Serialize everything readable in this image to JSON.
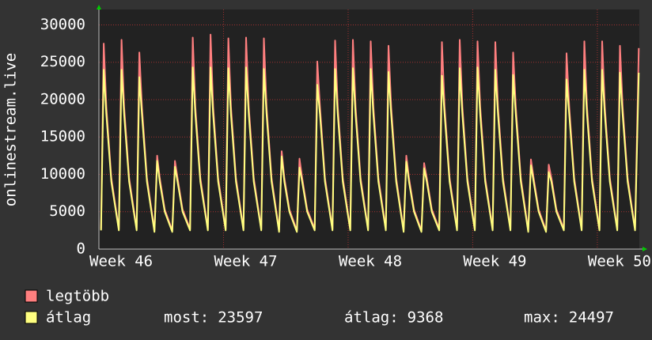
{
  "chart_data": {
    "type": "line",
    "ylabel": "onlinestream.live",
    "ylim": [
      0,
      31000
    ],
    "yticks": [
      0,
      5000,
      10000,
      15000,
      20000,
      25000,
      30000
    ],
    "xlim": [
      0,
      30.36
    ],
    "xticks": [
      {
        "value": 0,
        "label": "Week 46"
      },
      {
        "value": 7,
        "label": "Week 47"
      },
      {
        "value": 14,
        "label": "Week 48"
      },
      {
        "value": 21,
        "label": "Week 49"
      },
      {
        "value": 28,
        "label": "Week 50"
      }
    ],
    "grid": true,
    "x": [
      0.12,
      0.27,
      0.42,
      0.7,
      1.12,
      1.27,
      1.42,
      1.7,
      2.12,
      2.27,
      2.42,
      2.7,
      3.12,
      3.27,
      3.42,
      3.7,
      4.12,
      4.27,
      4.42,
      4.7,
      5.12,
      5.27,
      5.42,
      5.7,
      6.12,
      6.27,
      6.42,
      6.7,
      7.12,
      7.27,
      7.42,
      7.7,
      8.12,
      8.27,
      8.42,
      8.7,
      9.12,
      9.27,
      9.42,
      9.7,
      10.12,
      10.27,
      10.42,
      10.7,
      11.12,
      11.27,
      11.42,
      11.7,
      12.12,
      12.27,
      12.42,
      12.7,
      13.12,
      13.27,
      13.42,
      13.7,
      14.12,
      14.27,
      14.42,
      14.7,
      15.12,
      15.27,
      15.42,
      15.7,
      16.12,
      16.27,
      16.42,
      16.7,
      17.12,
      17.27,
      17.42,
      17.7,
      18.12,
      18.27,
      18.42,
      18.7,
      19.12,
      19.27,
      19.42,
      19.7,
      20.12,
      20.27,
      20.42,
      20.7,
      21.12,
      21.27,
      21.42,
      21.7,
      22.12,
      22.27,
      22.42,
      22.7,
      23.12,
      23.27,
      23.42,
      23.7,
      24.12,
      24.27,
      24.42,
      24.7,
      25.12,
      25.27,
      25.42,
      25.7,
      26.12,
      26.27,
      26.42,
      26.7,
      27.12,
      27.27,
      27.42,
      27.7,
      28.12,
      28.27,
      28.42,
      28.7,
      29.12,
      29.27,
      29.42,
      29.7,
      30.12,
      30.33
    ],
    "series": [
      {
        "name": "legtöbb",
        "color": "#ff7f7f",
        "values": [
          2700,
          27500,
          19000,
          9500,
          2700,
          28000,
          19000,
          9500,
          2700,
          26300,
          19000,
          9500,
          2500,
          12500,
          9500,
          5300,
          2500,
          11800,
          9500,
          5300,
          2700,
          28300,
          19000,
          9500,
          2700,
          28700,
          19000,
          9500,
          2700,
          28200,
          19000,
          9500,
          2700,
          28300,
          19000,
          9500,
          2700,
          28200,
          19000,
          9500,
          2500,
          13100,
          9500,
          5300,
          2500,
          12100,
          9500,
          5300,
          2700,
          25100,
          19000,
          9500,
          2700,
          27900,
          19000,
          9500,
          2700,
          28000,
          19000,
          9500,
          2700,
          27800,
          19000,
          9500,
          2700,
          27200,
          19000,
          9500,
          2500,
          12500,
          9500,
          5300,
          2500,
          11500,
          9500,
          5300,
          2700,
          27700,
          19000,
          9500,
          2700,
          28000,
          19000,
          9500,
          2700,
          27800,
          19000,
          9500,
          2700,
          27700,
          19000,
          9500,
          2700,
          26300,
          19000,
          9500,
          2500,
          12000,
          9500,
          5300,
          2500,
          11300,
          9500,
          5300,
          2700,
          26200,
          19000,
          9500,
          2700,
          27800,
          19000,
          9500,
          2700,
          27800,
          19000,
          9500,
          2700,
          27200,
          19000,
          9500,
          2700,
          26900
        ]
      },
      {
        "name": "átlag",
        "color": "#ffff80",
        "values": [
          2500,
          24000,
          18000,
          9000,
          2500,
          24000,
          18000,
          9000,
          2500,
          23000,
          18000,
          9000,
          2300,
          11800,
          9000,
          5000,
          2300,
          11000,
          9000,
          5000,
          2500,
          24300,
          18000,
          9000,
          2500,
          24300,
          18000,
          9000,
          2500,
          24200,
          18000,
          9000,
          2500,
          24300,
          18000,
          9000,
          2500,
          24100,
          18000,
          9000,
          2300,
          12400,
          9000,
          5000,
          2300,
          10900,
          9000,
          5000,
          2500,
          22000,
          18000,
          9000,
          2500,
          24100,
          18000,
          9000,
          2500,
          24200,
          18000,
          9000,
          2500,
          24100,
          18000,
          9000,
          2500,
          23700,
          18000,
          9000,
          2300,
          11700,
          9000,
          5000,
          2300,
          10800,
          9000,
          5000,
          2500,
          23200,
          18000,
          9000,
          2500,
          24200,
          18000,
          9000,
          2500,
          24300,
          18000,
          9000,
          2500,
          24000,
          18000,
          9000,
          2500,
          23300,
          18000,
          9000,
          2300,
          11200,
          9000,
          5000,
          2300,
          10300,
          9000,
          5000,
          2500,
          22700,
          18000,
          9000,
          2500,
          24000,
          18000,
          9000,
          2500,
          24000,
          18000,
          9000,
          2500,
          23600,
          18000,
          9000,
          2500,
          23597
        ]
      }
    ],
    "stats": [
      {
        "label": "most:",
        "value": 23597
      },
      {
        "label": "átlag:",
        "value": 9368
      },
      {
        "label": "max:",
        "value": 24497
      }
    ]
  }
}
